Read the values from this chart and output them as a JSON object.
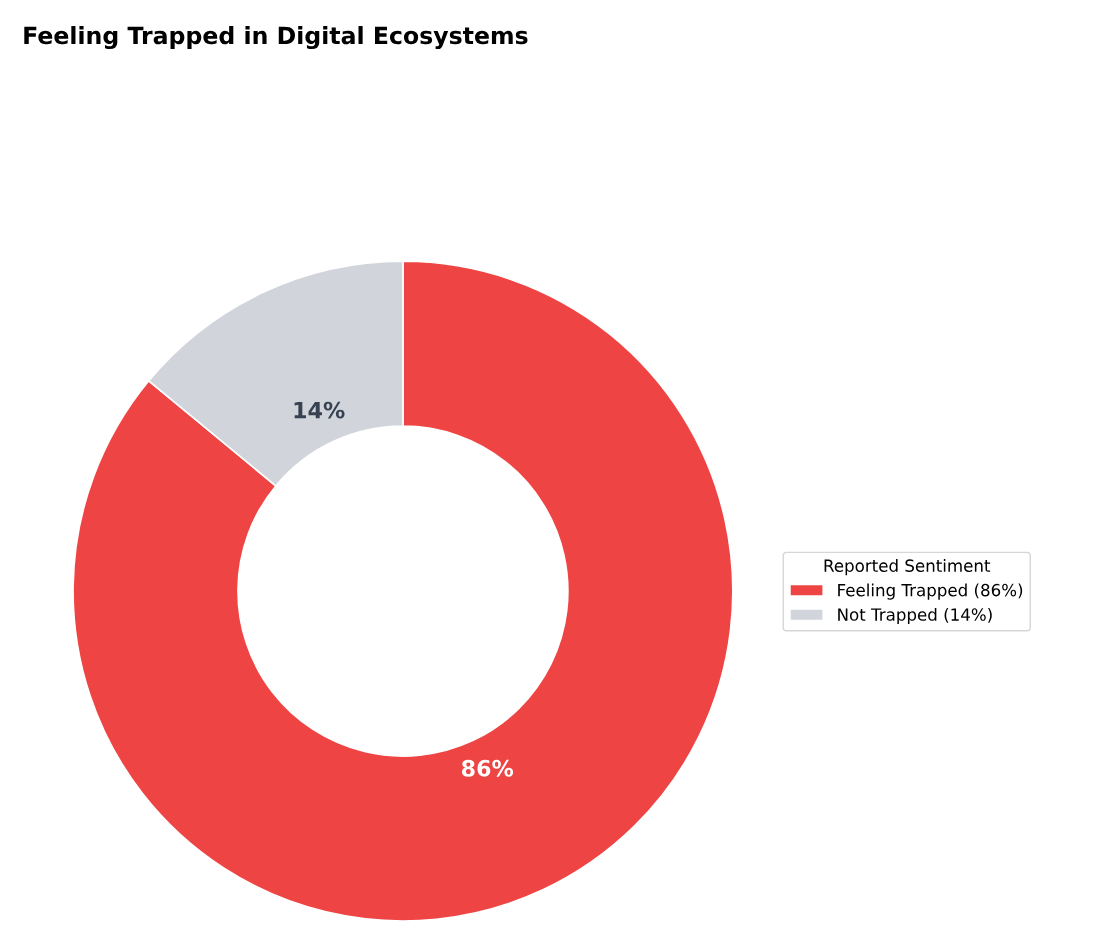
{
  "chart_data": {
    "type": "donut",
    "title": "Feeling Trapped in Digital Ecosystems",
    "categories": [
      "Feeling Trapped (86%)",
      "Not Trapped (14%)"
    ],
    "values": [
      86,
      14
    ],
    "colors": [
      "#ef4444",
      "#d1d5db"
    ],
    "value_labels": [
      "86%",
      "14%"
    ],
    "legend_title": "Reported Sentiment",
    "legend": "right"
  }
}
